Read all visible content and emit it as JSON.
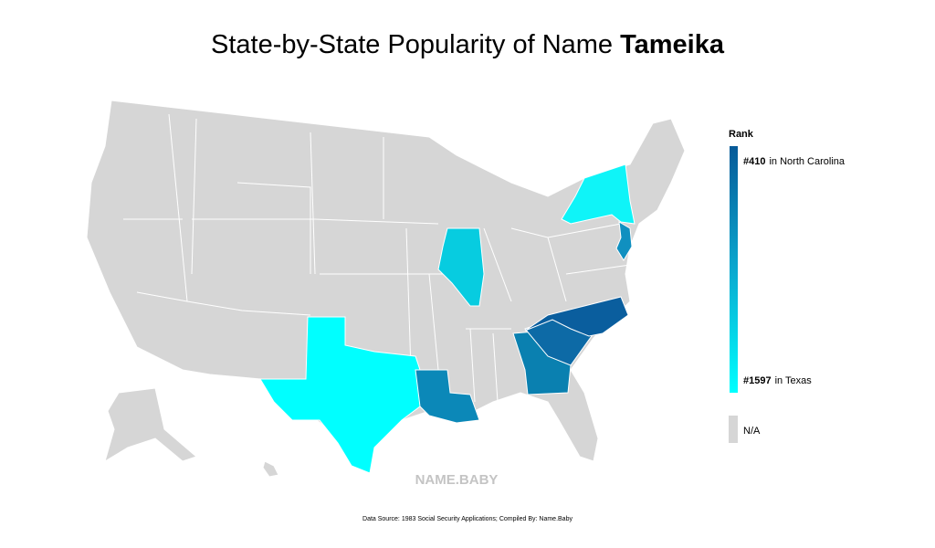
{
  "title": {
    "prefix": "State-by-State Popularity of Name",
    "name": "Tameika"
  },
  "legend": {
    "heading": "Rank",
    "top": {
      "rank": "#410",
      "place": "in North Carolina"
    },
    "bottom": {
      "rank": "#1597",
      "place": "in Texas"
    },
    "na": "N/A"
  },
  "watermark": "NAME.BABY",
  "footer": "Data Source: 1983 Social Security Applications; Compiled By: Name.Baby"
}
